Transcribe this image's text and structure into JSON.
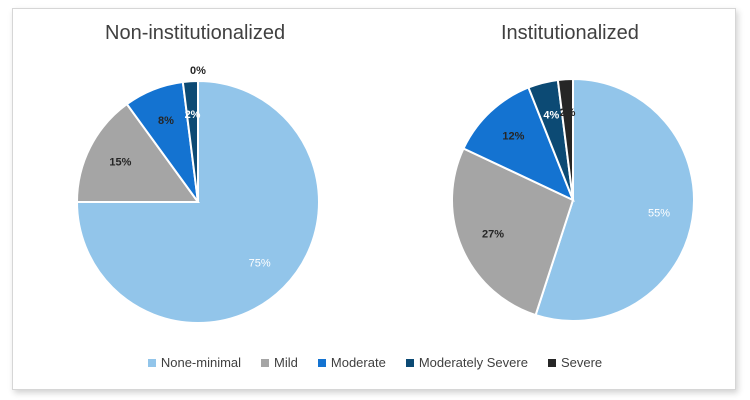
{
  "chart_data": [
    {
      "type": "pie",
      "title": "Non-institutionalized",
      "categories": [
        "None-minimal",
        "Mild",
        "Moderate",
        "Moderately Severe",
        "Severe"
      ],
      "values": [
        75,
        15,
        8,
        2,
        0
      ],
      "labels": [
        "75%",
        "15%",
        "8%",
        "2%",
        "0%"
      ]
    },
    {
      "type": "pie",
      "title": "Institutionalized",
      "categories": [
        "None-minimal",
        "Mild",
        "Moderate",
        "Moderately Severe",
        "Severe"
      ],
      "values": [
        55,
        27,
        12,
        4,
        2
      ],
      "labels": [
        "55%",
        "27%",
        "12%",
        "4%",
        "2%"
      ]
    }
  ],
  "colors": [
    "#92C5EA",
    "#A5A5A5",
    "#1473D1",
    "#0C4A74",
    "#262626"
  ],
  "legend": [
    "None-minimal",
    "Mild",
    "Moderate",
    "Moderately Severe",
    "Severe"
  ]
}
